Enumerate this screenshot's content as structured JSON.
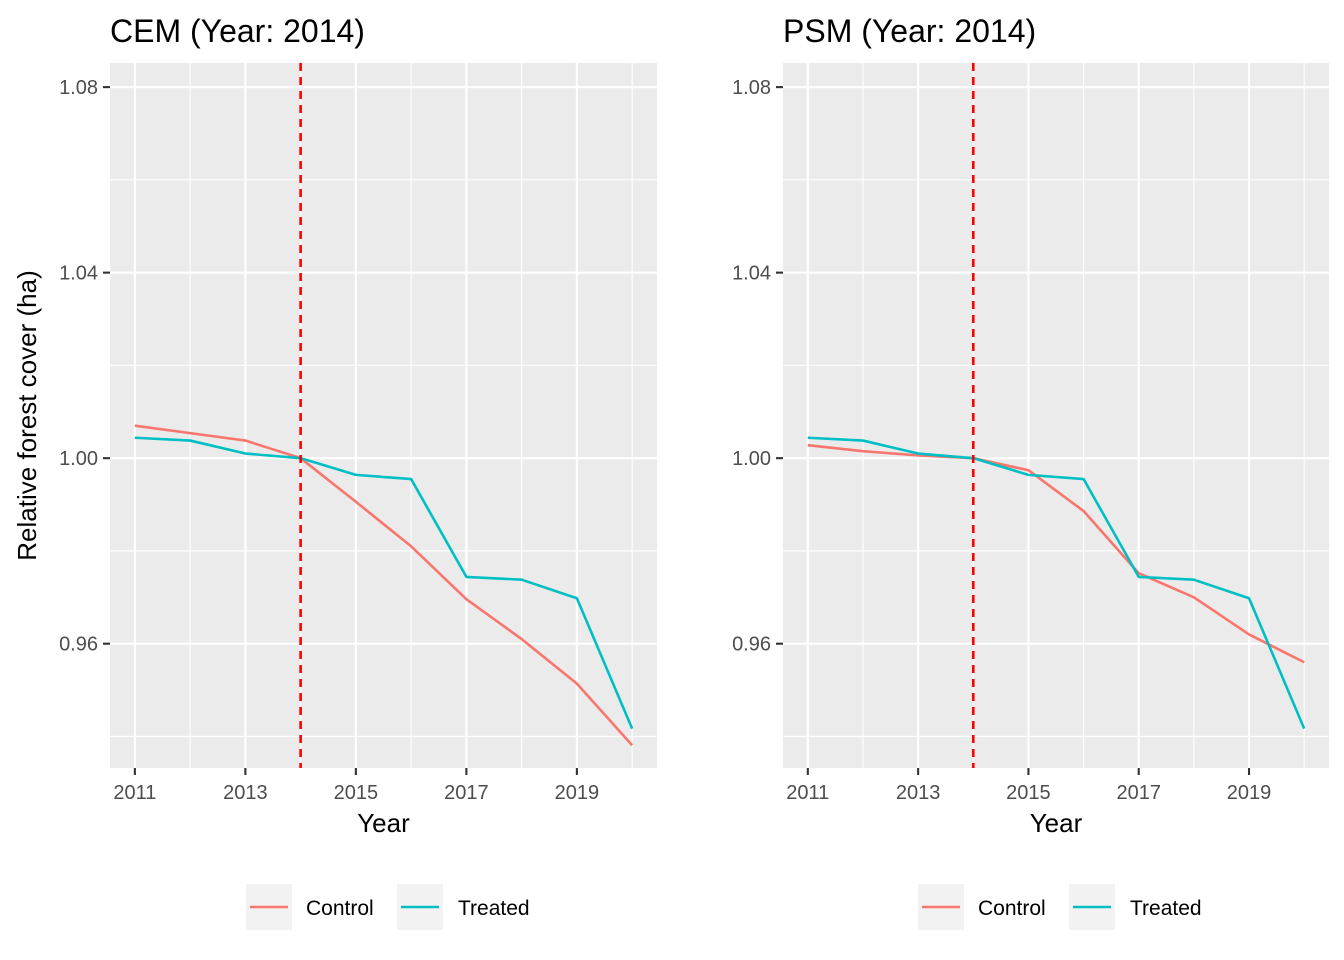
{
  "chart_data": [
    {
      "type": "line",
      "title": "CEM (Year: 2014)",
      "xlabel": "Year",
      "ylabel": "Relative forest cover (ha)",
      "x": [
        2011,
        2012,
        2013,
        2014,
        2015,
        2016,
        2017,
        2018,
        2019,
        2020
      ],
      "xlim": [
        2010.55,
        2020.45
      ],
      "ylim": [
        0.9332,
        1.0852
      ],
      "x_ticks": [
        2011,
        2013,
        2015,
        2017,
        2019
      ],
      "x_tick_labels": [
        "2011",
        "2013",
        "2015",
        "2017",
        "2019"
      ],
      "y_ticks": [
        0.96,
        1.0,
        1.04,
        1.08
      ],
      "y_tick_labels": [
        "0.96",
        "1.00",
        "1.04",
        "1.08"
      ],
      "vline": {
        "x": 2014,
        "color": "#FF0000",
        "style": "dashed"
      },
      "series": [
        {
          "name": "Control",
          "color": "#F8766D",
          "values": [
            1.007,
            1.0054,
            1.0038,
            1.0,
            0.9906,
            0.981,
            0.9696,
            0.961,
            0.9514,
            0.9381
          ]
        },
        {
          "name": "Treated",
          "color": "#00BFC4",
          "values": [
            1.0044,
            1.0038,
            1.001,
            1.0,
            0.9964,
            0.9955,
            0.9744,
            0.9738,
            0.9698,
            0.9417
          ]
        }
      ],
      "legend": {
        "position": "bottom",
        "entries": [
          "Control",
          "Treated"
        ]
      },
      "grid": true
    },
    {
      "type": "line",
      "title": "PSM (Year: 2014)",
      "xlabel": "Year",
      "ylabel": "",
      "x": [
        2011,
        2012,
        2013,
        2014,
        2015,
        2016,
        2017,
        2018,
        2019,
        2020
      ],
      "xlim": [
        2010.55,
        2020.45
      ],
      "ylim": [
        0.9332,
        1.0852
      ],
      "x_ticks": [
        2011,
        2013,
        2015,
        2017,
        2019
      ],
      "x_tick_labels": [
        "2011",
        "2013",
        "2015",
        "2017",
        "2019"
      ],
      "y_ticks": [
        0.96,
        1.0,
        1.04,
        1.08
      ],
      "y_tick_labels": [
        "0.96",
        "1.00",
        "1.04",
        "1.08"
      ],
      "vline": {
        "x": 2014,
        "color": "#FF0000",
        "style": "dashed"
      },
      "series": [
        {
          "name": "Control",
          "color": "#F8766D",
          "values": [
            1.0028,
            1.0015,
            1.0006,
            1.0,
            0.9974,
            0.9886,
            0.9752,
            0.97,
            0.962,
            0.956
          ]
        },
        {
          "name": "Treated",
          "color": "#00BFC4",
          "values": [
            1.0044,
            1.0038,
            1.001,
            1.0,
            0.9964,
            0.9955,
            0.9744,
            0.9738,
            0.9698,
            0.9417
          ]
        }
      ],
      "legend": {
        "position": "bottom",
        "entries": [
          "Control",
          "Treated"
        ]
      },
      "grid": true
    }
  ]
}
